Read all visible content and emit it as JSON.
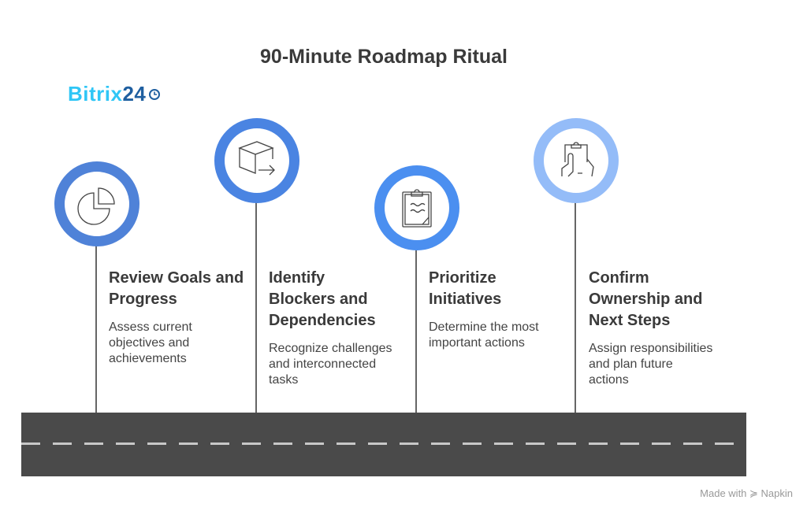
{
  "title": "90-Minute Roadmap Ritual",
  "logo": {
    "part1": "Bitrix",
    "part2": "24",
    "icon": "clock-icon"
  },
  "steps": [
    {
      "heading": "Review Goals and Progress",
      "description": "Assess current objectives and achievements",
      "icon": "pie-chart-icon",
      "color": "#4f82d8"
    },
    {
      "heading": "Identify Blockers and Dependencies",
      "description": "Recognize challenges and interconnected tasks",
      "icon": "box-arrow-icon",
      "color": "#4a84e2"
    },
    {
      "heading": "Prioritize Initiatives",
      "description": "Determine the most important actions",
      "icon": "clipboard-icon",
      "color": "#4b8ff0"
    },
    {
      "heading": "Confirm Ownership and Next Steps",
      "description": "Assign responsibilities and plan future actions",
      "icon": "hand-clipboard-icon",
      "color": "#94bcf8"
    }
  ],
  "footer": "Made with ≽ Napkin"
}
